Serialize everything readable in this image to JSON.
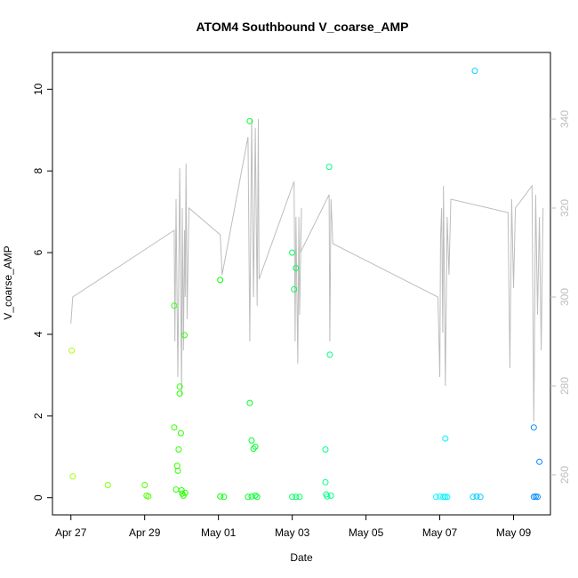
{
  "chart_data": {
    "type": "scatter",
    "title": "ATOM4 Southbound V_coarse_AMP",
    "xlabel": "Date",
    "ylabel": "V_coarse_AMP",
    "x_tick_labels": [
      "Apr 27",
      "Apr 29",
      "May 01",
      "May 03",
      "May 05",
      "May 07",
      "May 09"
    ],
    "x_tick_days": [
      0,
      2,
      4,
      6,
      8,
      10,
      12
    ],
    "y_ticks": [
      0,
      2,
      4,
      6,
      8,
      10
    ],
    "right_ticks": [
      260,
      280,
      300,
      320,
      340
    ],
    "xlim": [
      -0.5,
      13.0
    ],
    "ylim": [
      -0.42,
      10.9
    ],
    "ylim_right": [
      251.0,
      355.0
    ],
    "grid": false,
    "colors": {
      "axis": "#000000",
      "line": "#bdbdbd",
      "right_axis": "#bdbdbd"
    },
    "series": [
      {
        "kind": "points",
        "values": [
          [
            0.02,
            3.6
          ],
          [
            0.05,
            0.52
          ],
          [
            1.0,
            0.31
          ],
          [
            2.0,
            0.31
          ],
          [
            2.05,
            0.05
          ],
          [
            2.1,
            0.03
          ],
          [
            2.8,
            4.7
          ],
          [
            2.8,
            1.72
          ],
          [
            2.85,
            0.2
          ],
          [
            2.88,
            0.78
          ],
          [
            2.9,
            0.66
          ],
          [
            2.92,
            1.18
          ],
          [
            2.95,
            2.72
          ],
          [
            2.95,
            2.55
          ],
          [
            2.98,
            1.58
          ],
          [
            3.0,
            0.18
          ],
          [
            3.02,
            0.1
          ],
          [
            3.05,
            0.05
          ],
          [
            3.08,
            3.98
          ],
          [
            3.1,
            0.12
          ],
          [
            4.05,
            5.33
          ],
          [
            4.05,
            0.03
          ],
          [
            4.15,
            0.02
          ],
          [
            4.85,
            9.22
          ],
          [
            4.85,
            2.32
          ],
          [
            4.9,
            1.4
          ],
          [
            4.95,
            1.2
          ],
          [
            5.0,
            1.25
          ],
          [
            4.8,
            0.02
          ],
          [
            4.9,
            0.03
          ],
          [
            5.0,
            0.05
          ],
          [
            5.05,
            0.02
          ],
          [
            6.0,
            6.0
          ],
          [
            6.05,
            5.1
          ],
          [
            6.1,
            5.62
          ],
          [
            6.0,
            0.02
          ],
          [
            6.1,
            0.02
          ],
          [
            6.2,
            0.02
          ],
          [
            6.9,
            1.18
          ],
          [
            6.9,
            0.38
          ],
          [
            6.92,
            0.08
          ],
          [
            6.95,
            0.03
          ],
          [
            7.0,
            8.1
          ],
          [
            7.02,
            3.5
          ],
          [
            7.05,
            0.05
          ],
          [
            10.95,
            10.45
          ],
          [
            9.9,
            0.02
          ],
          [
            10.0,
            0.03
          ],
          [
            10.1,
            0.02
          ],
          [
            10.15,
            0.02
          ],
          [
            10.2,
            0.02
          ],
          [
            10.15,
            1.45
          ],
          [
            10.9,
            0.02
          ],
          [
            11.0,
            0.03
          ],
          [
            11.1,
            0.02
          ],
          [
            12.55,
            1.72
          ],
          [
            12.55,
            0.02
          ],
          [
            12.6,
            0.03
          ],
          [
            12.65,
            0.02
          ],
          [
            12.7,
            0.88
          ]
        ]
      },
      {
        "kind": "line",
        "axis": "right",
        "values": [
          [
            0.0,
            294
          ],
          [
            0.05,
            300
          ],
          [
            2.8,
            315
          ],
          [
            2.82,
            290
          ],
          [
            2.85,
            322
          ],
          [
            2.9,
            282
          ],
          [
            2.95,
            329
          ],
          [
            3.0,
            278
          ],
          [
            3.02,
            320
          ],
          [
            3.05,
            288
          ],
          [
            3.08,
            315
          ],
          [
            3.1,
            300
          ],
          [
            3.12,
            330
          ],
          [
            3.15,
            295
          ],
          [
            3.2,
            320
          ],
          [
            4.05,
            314
          ],
          [
            4.1,
            305
          ],
          [
            4.8,
            336
          ],
          [
            4.85,
            290
          ],
          [
            4.9,
            340
          ],
          [
            4.95,
            300
          ],
          [
            5.0,
            338
          ],
          [
            5.05,
            298
          ],
          [
            5.08,
            340
          ],
          [
            5.1,
            304
          ],
          [
            6.05,
            326
          ],
          [
            6.08,
            290
          ],
          [
            6.1,
            318
          ],
          [
            6.15,
            285
          ],
          [
            6.18,
            318
          ],
          [
            6.2,
            296
          ],
          [
            6.25,
            320
          ],
          [
            6.22,
            310
          ],
          [
            7.0,
            323
          ],
          [
            7.02,
            290
          ],
          [
            7.05,
            322
          ],
          [
            7.1,
            312
          ],
          [
            9.95,
            300
          ],
          [
            10.0,
            282
          ],
          [
            10.02,
            313
          ],
          [
            10.05,
            320
          ],
          [
            10.08,
            292
          ],
          [
            10.1,
            325
          ],
          [
            10.15,
            280
          ],
          [
            10.2,
            318
          ],
          [
            10.25,
            305
          ],
          [
            10.3,
            322
          ],
          [
            11.85,
            319
          ],
          [
            11.9,
            284
          ],
          [
            11.95,
            322
          ],
          [
            12.0,
            302
          ],
          [
            12.05,
            320
          ],
          [
            12.5,
            325
          ],
          [
            12.55,
            272
          ],
          [
            12.6,
            323
          ],
          [
            12.65,
            296
          ],
          [
            12.7,
            318
          ],
          [
            12.75,
            288
          ],
          [
            12.8,
            320
          ]
        ]
      }
    ]
  }
}
